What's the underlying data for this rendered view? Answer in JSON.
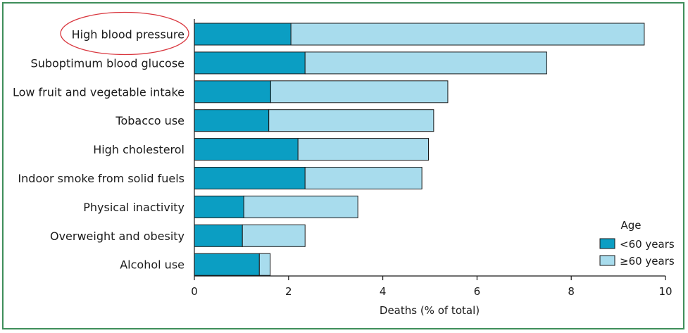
{
  "chart_data": {
    "type": "bar",
    "orientation": "horizontal",
    "stacked": true,
    "categories": [
      "High blood pressure",
      "Suboptimum blood glucose",
      "Low fruit and vegetable intake",
      "Tobacco use",
      "High cholesterol",
      "Indoor smoke from solid fuels",
      "Physical inactivity",
      "Overweight and obesity",
      "Alcohol use"
    ],
    "series": [
      {
        "name": "<60 years",
        "color": "#0b9ec3",
        "values": [
          2.05,
          2.35,
          1.62,
          1.58,
          2.2,
          2.35,
          1.05,
          1.02,
          1.38
        ]
      },
      {
        "name": "≥60 years",
        "color": "#a8dced",
        "values": [
          7.5,
          5.13,
          3.76,
          3.5,
          2.77,
          2.48,
          2.42,
          1.33,
          0.23
        ]
      }
    ],
    "xlabel": "Deaths (% of total)",
    "xlim": [
      0,
      10
    ],
    "xticks": [
      "0",
      "2",
      "4",
      "6",
      "8",
      "10"
    ],
    "legend": {
      "title": "Age",
      "placement": "bottom-right"
    },
    "highlighted_category": "High blood pressure",
    "highlight_color": "#d9363e",
    "grid": false
  }
}
